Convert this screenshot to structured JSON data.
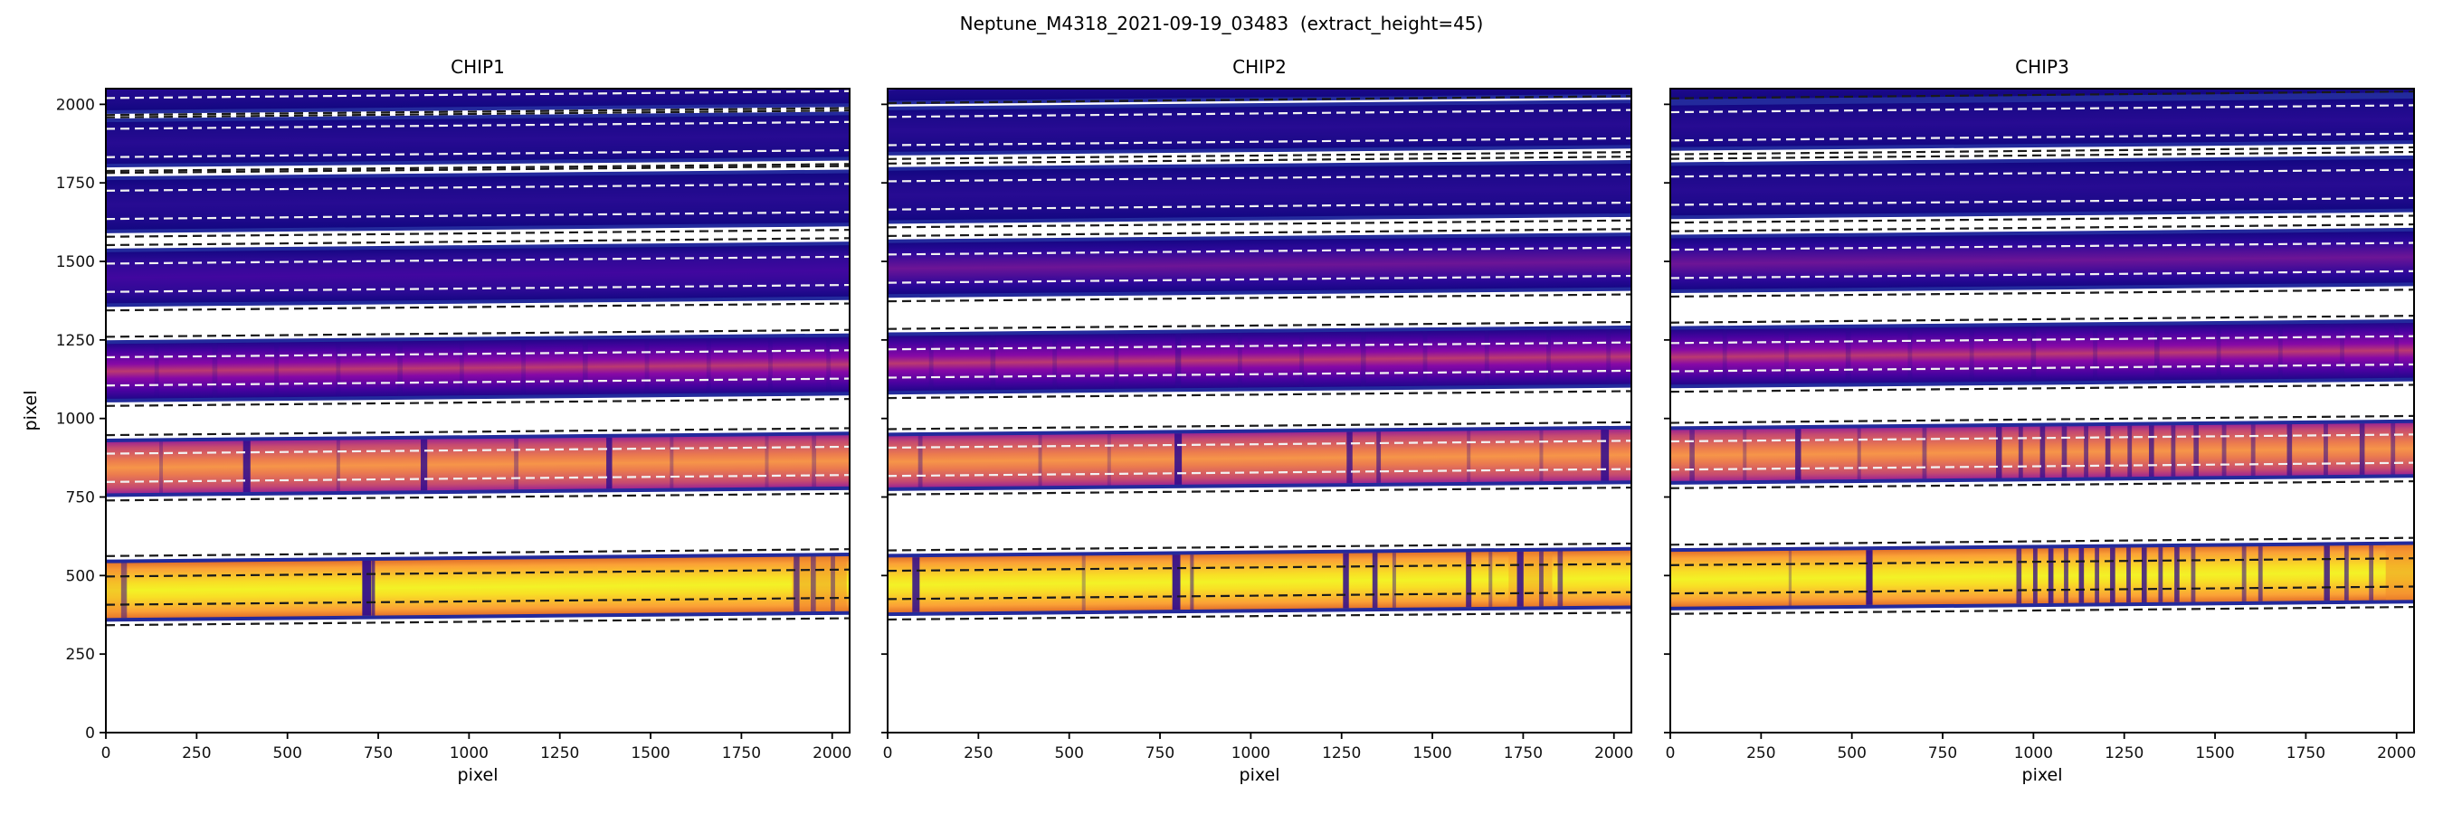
{
  "colors": {
    "band_edge_line": "#232a9c",
    "absorption": "#2b0a90",
    "shade_orange": "#f0882a",
    "dash_white": "#f2f2f2",
    "dash_black": "#1a1a1a",
    "frame": "#000000",
    "palettes": {
      "dark1": [
        [
          0,
          "#10067f"
        ],
        [
          18,
          "#1c0989"
        ],
        [
          50,
          "#270b92"
        ],
        [
          82,
          "#1c0989"
        ],
        [
          100,
          "#10067f"
        ]
      ],
      "dark2": [
        [
          0,
          "#10067f"
        ],
        [
          20,
          "#2b0a94"
        ],
        [
          50,
          "#41079f"
        ],
        [
          80,
          "#2b0a94"
        ],
        [
          100,
          "#10067f"
        ]
      ],
      "dark3": [
        [
          0,
          "#10067f"
        ],
        [
          22,
          "#2e089a"
        ],
        [
          50,
          "#6d1596"
        ],
        [
          78,
          "#2e089a"
        ],
        [
          100,
          "#10067f"
        ]
      ],
      "purple": [
        [
          0,
          "#150883"
        ],
        [
          18,
          "#4a02a0"
        ],
        [
          38,
          "#8709a6"
        ],
        [
          50,
          "#bb3a70"
        ],
        [
          62,
          "#8709a6"
        ],
        [
          82,
          "#4a02a0"
        ],
        [
          100,
          "#150883"
        ]
      ],
      "orange": [
        [
          0,
          "#8b159f"
        ],
        [
          15,
          "#c64a70"
        ],
        [
          38,
          "#ec7c4e"
        ],
        [
          50,
          "#f69549"
        ],
        [
          62,
          "#ec7c4e"
        ],
        [
          85,
          "#c64a70"
        ],
        [
          100,
          "#8b159f"
        ]
      ],
      "yellow": [
        [
          0,
          "#d95e26"
        ],
        [
          15,
          "#fba136"
        ],
        [
          38,
          "#f8df25"
        ],
        [
          50,
          "#f3f226"
        ],
        [
          62,
          "#f8df25"
        ],
        [
          85,
          "#fba136"
        ],
        [
          100,
          "#d95e26"
        ]
      ]
    }
  },
  "chart_data": {
    "type": "heatmap",
    "title": "Neptune_M4318_2021-09-19_03483  (extract_height=45)",
    "xlabel": "pixel",
    "ylabel": "pixel",
    "xlim": [
      0,
      2048
    ],
    "ylim": [
      0,
      2050
    ],
    "x_ticks": [
      0,
      250,
      500,
      750,
      1000,
      1250,
      1500,
      1750,
      2000
    ],
    "y_ticks": [
      0,
      250,
      500,
      750,
      1000,
      1250,
      1500,
      1750,
      2000
    ],
    "extract_height": 45,
    "panels": [
      {
        "title": "CHIP1",
        "orders": [
          {
            "center": 2065,
            "height": 185,
            "tilt": 22,
            "palette": "dark1",
            "lines": []
          },
          {
            "center": 1877,
            "height": 150,
            "tilt": 22,
            "palette": "dark1",
            "lines": []
          },
          {
            "center": 1680,
            "height": 175,
            "tilt": 22,
            "palette": "dark1",
            "lines": []
          },
          {
            "center": 1448,
            "height": 180,
            "tilt": 22,
            "palette": "dark2",
            "lines": []
          },
          {
            "center": 1150,
            "height": 192,
            "tilt": 22,
            "palette": "purple",
            "lines": [
              [
                140,
                12,
                0.22
              ],
              [
                300,
                14,
                0.25
              ],
              [
                470,
                12,
                0.22
              ],
              [
                640,
                12,
                0.22
              ],
              [
                810,
                14,
                0.25
              ],
              [
                980,
                12,
                0.22
              ],
              [
                1150,
                12,
                0.22
              ],
              [
                1320,
                14,
                0.25
              ],
              [
                1490,
                12,
                0.22
              ],
              [
                1660,
                12,
                0.22
              ],
              [
                1830,
                12,
                0.22
              ],
              [
                1990,
                12,
                0.22
              ]
            ]
          },
          {
            "center": 843,
            "height": 180,
            "tilt": 22,
            "palette": "orange",
            "lines": [
              [
                388,
                20,
                0.85
              ],
              [
                876,
                18,
                0.8
              ],
              [
                1386,
                16,
                0.8
              ],
              [
                152,
                10,
                0.3
              ],
              [
                640,
                10,
                0.3
              ],
              [
                1130,
                12,
                0.35
              ],
              [
                1558,
                10,
                0.3
              ],
              [
                1820,
                10,
                0.25
              ],
              [
                1950,
                12,
                0.3
              ]
            ]
          },
          {
            "center": 452,
            "height": 192,
            "tilt": 22,
            "palette": "yellow",
            "lines": [
              [
                20,
                70,
                0.35,
                "o"
              ],
              [
                1965,
                150,
                0.45,
                "o"
              ],
              [
                50,
                16,
                0.5
              ],
              [
                718,
                24,
                0.92
              ],
              [
                736,
                10,
                0.7
              ],
              [
                1902,
                16,
                0.65
              ],
              [
                1948,
                14,
                0.5
              ],
              [
                2002,
                12,
                0.45
              ]
            ]
          }
        ]
      },
      {
        "title": "CHIP2",
        "orders": [
          {
            "center": 2095,
            "height": 185,
            "tilt": 22,
            "palette": "dark1",
            "lines": []
          },
          {
            "center": 1915,
            "height": 150,
            "tilt": 22,
            "palette": "dark1",
            "lines": []
          },
          {
            "center": 1710,
            "height": 175,
            "tilt": 22,
            "palette": "dark1",
            "lines": []
          },
          {
            "center": 1477,
            "height": 180,
            "tilt": 22,
            "palette": "dark3",
            "lines": []
          },
          {
            "center": 1175,
            "height": 192,
            "tilt": 22,
            "palette": "purple",
            "lines": [
              [
                120,
                12,
                0.25
              ],
              [
                290,
                14,
                0.28
              ],
              [
                460,
                12,
                0.25
              ],
              [
                630,
                12,
                0.25
              ],
              [
                800,
                16,
                0.4
              ],
              [
                970,
                12,
                0.25
              ],
              [
                1140,
                12,
                0.25
              ],
              [
                1310,
                14,
                0.28
              ],
              [
                1480,
                12,
                0.25
              ],
              [
                1650,
                12,
                0.25
              ],
              [
                1820,
                12,
                0.25
              ],
              [
                1985,
                12,
                0.25
              ]
            ]
          },
          {
            "center": 862,
            "height": 180,
            "tilt": 22,
            "palette": "orange",
            "lines": [
              [
                90,
                12,
                0.4
              ],
              [
                420,
                10,
                0.3
              ],
              [
                610,
                10,
                0.25
              ],
              [
                800,
                20,
                0.85
              ],
              [
                1272,
                16,
                0.75
              ],
              [
                1352,
                12,
                0.6
              ],
              [
                1600,
                10,
                0.3
              ],
              [
                1800,
                10,
                0.3
              ],
              [
                1975,
                22,
                0.85
              ]
            ]
          },
          {
            "center": 470,
            "height": 192,
            "tilt": 22,
            "palette": "yellow",
            "lines": [
              [
                1770,
                120,
                0.35,
                "o"
              ],
              [
                78,
                20,
                0.85
              ],
              [
                540,
                10,
                0.3
              ],
              [
                795,
                22,
                0.9
              ],
              [
                838,
                10,
                0.5
              ],
              [
                1262,
                16,
                0.85
              ],
              [
                1342,
                14,
                0.8
              ],
              [
                1395,
                10,
                0.45
              ],
              [
                1600,
                15,
                0.8
              ],
              [
                1660,
                10,
                0.4
              ],
              [
                1742,
                18,
                0.85
              ],
              [
                1800,
                12,
                0.6
              ],
              [
                1852,
                14,
                0.6
              ]
            ]
          }
        ]
      },
      {
        "title": "CHIP3",
        "orders": [
          {
            "center": 2100,
            "height": 185,
            "tilt": 22,
            "palette": "dark1",
            "lines": []
          },
          {
            "center": 1930,
            "height": 150,
            "tilt": 22,
            "palette": "dark1",
            "lines": []
          },
          {
            "center": 1725,
            "height": 175,
            "tilt": 22,
            "palette": "dark1",
            "lines": []
          },
          {
            "center": 1492,
            "height": 180,
            "tilt": 22,
            "palette": "dark3",
            "lines": []
          },
          {
            "center": 1195,
            "height": 192,
            "tilt": 22,
            "palette": "purple",
            "lines": [
              [
                150,
                12,
                0.25
              ],
              [
                320,
                12,
                0.25
              ],
              [
                490,
                14,
                0.3
              ],
              [
                660,
                12,
                0.25
              ],
              [
                830,
                12,
                0.25
              ],
              [
                1000,
                14,
                0.3
              ],
              [
                1170,
                12,
                0.28
              ],
              [
                1340,
                14,
                0.3
              ],
              [
                1510,
                12,
                0.28
              ],
              [
                1680,
                12,
                0.25
              ],
              [
                1850,
                12,
                0.25
              ],
              [
                2000,
                12,
                0.25
              ]
            ]
          },
          {
            "center": 882,
            "height": 180,
            "tilt": 22,
            "palette": "orange",
            "lines": [
              [
                60,
                14,
                0.5
              ],
              [
                205,
                10,
                0.3
              ],
              [
                352,
                16,
                0.75
              ],
              [
                520,
                10,
                0.35
              ],
              [
                700,
                12,
                0.45
              ],
              [
                905,
                16,
                0.7
              ],
              [
                965,
                12,
                0.6
              ],
              [
                1025,
                14,
                0.7
              ],
              [
                1085,
                14,
                0.65
              ],
              [
                1145,
                12,
                0.6
              ],
              [
                1205,
                14,
                0.7
              ],
              [
                1265,
                12,
                0.6
              ],
              [
                1325,
                14,
                0.7
              ],
              [
                1385,
                12,
                0.6
              ],
              [
                1448,
                14,
                0.65
              ],
              [
                1525,
                12,
                0.5
              ],
              [
                1605,
                12,
                0.5
              ],
              [
                1705,
                14,
                0.65
              ],
              [
                1805,
                12,
                0.55
              ],
              [
                1905,
                14,
                0.65
              ],
              [
                1990,
                12,
                0.5
              ]
            ]
          },
          {
            "center": 488,
            "height": 192,
            "tilt": 22,
            "palette": "yellow",
            "lines": [
              [
                2010,
                80,
                0.5,
                "o"
              ],
              [
                330,
                8,
                0.3
              ],
              [
                548,
                18,
                0.9
              ],
              [
                960,
                14,
                0.7
              ],
              [
                1005,
                12,
                0.75
              ],
              [
                1048,
                14,
                0.8
              ],
              [
                1090,
                12,
                0.7
              ],
              [
                1132,
                14,
                0.8
              ],
              [
                1175,
                12,
                0.7
              ],
              [
                1218,
                14,
                0.8
              ],
              [
                1262,
                12,
                0.75
              ],
              [
                1305,
                14,
                0.8
              ],
              [
                1350,
                12,
                0.7
              ],
              [
                1395,
                14,
                0.75
              ],
              [
                1440,
                12,
                0.6
              ],
              [
                1580,
                12,
                0.55
              ],
              [
                1625,
                12,
                0.6
              ],
              [
                1808,
                16,
                0.8
              ],
              [
                1862,
                12,
                0.65
              ],
              [
                1930,
                12,
                0.55
              ]
            ]
          }
        ]
      }
    ]
  }
}
